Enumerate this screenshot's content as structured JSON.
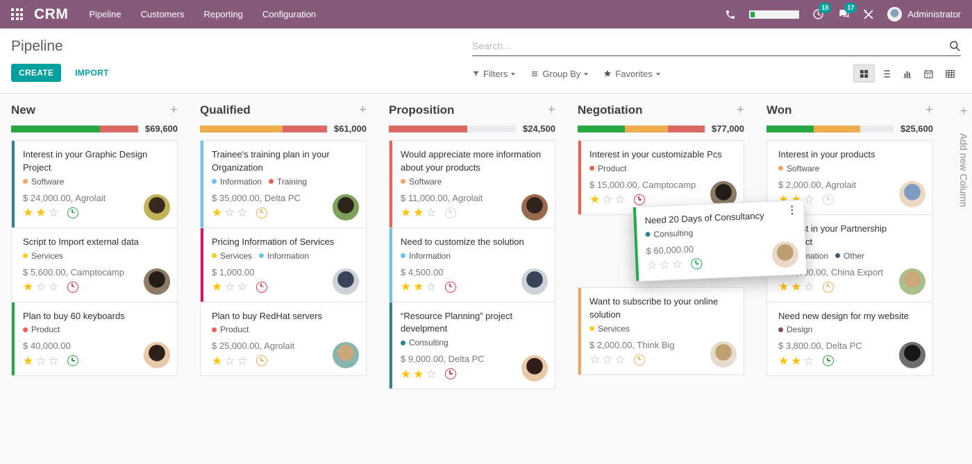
{
  "topbar": {
    "brand": "CRM",
    "menus": [
      "Pipeline",
      "Customers",
      "Reporting",
      "Configuration"
    ],
    "activity_count": "15",
    "message_count": "17",
    "user": "Administrator",
    "accent_color": "#875A7B",
    "badge_color": "#00A09D"
  },
  "control": {
    "title": "Pipeline",
    "create_label": "CREATE",
    "import_label": "IMPORT",
    "search_placeholder": "Search...",
    "filters_label": "Filters",
    "group_by_label": "Group By",
    "favorites_label": "Favorites",
    "views": {
      "active": "kanban",
      "items": [
        "kanban",
        "list",
        "graph",
        "calendar",
        "pivot"
      ]
    }
  },
  "board": {
    "add_column_label": "Add new Column",
    "columns": [
      {
        "name": "New",
        "amount": "$69,600",
        "progress": [
          {
            "color": "#28a745",
            "width": "70%"
          },
          {
            "color": "#dc6965",
            "width": "30%"
          }
        ],
        "cards": [
          {
            "title": "Interest in your Graphic Design Project",
            "tags": [
              {
                "label": "Software",
                "color": "#F4A460"
              }
            ],
            "amount": "$ 24,000.00, Agrolait",
            "stars": 2,
            "clock": "#28a745",
            "border": "#2C8397",
            "avatar": {
              "a": "#c2b35a",
              "b": "#39291f"
            }
          },
          {
            "title": "Script to Import external data",
            "tags": [
              {
                "label": "Services",
                "color": "#F7CD1F"
              }
            ],
            "amount": "$ 5,600.00, Camptocamp",
            "stars": 1,
            "clock": "#dc3545",
            "border": "transparent",
            "avatar": {
              "a": "#8a7a66",
              "b": "#241d18"
            }
          },
          {
            "title": "Plan to buy 60 keyboards",
            "tags": [
              {
                "label": "Product",
                "color": "#F06050"
              }
            ],
            "amount": "$ 40,000.00",
            "stars": 1,
            "clock": "#28a745",
            "border": "#28a745",
            "avatar": {
              "a": "#e8c9a8",
              "b": "#2e1f1a"
            }
          }
        ]
      },
      {
        "name": "Qualified",
        "amount": "$61,000",
        "progress": [
          {
            "color": "#f0ad4e",
            "width": "65%"
          },
          {
            "color": "#dc6965",
            "width": "35%"
          }
        ],
        "cards": [
          {
            "title": "Trainee's training plan in your Organization",
            "tags": [
              {
                "label": "Information",
                "color": "#6CC1ED"
              },
              {
                "label": "Training",
                "color": "#F06050"
              }
            ],
            "amount": "$ 35,000.00, Delta PC",
            "stars": 1,
            "clock": "#f0ad4e",
            "border": "#6CC1ED",
            "avatar": {
              "a": "#7da05a",
              "b": "#2e241b"
            }
          },
          {
            "title": "Pricing Information of Services",
            "tags": [
              {
                "label": "Services",
                "color": "#F7CD1F"
              },
              {
                "label": "Information",
                "color": "#6CC1ED"
              }
            ],
            "amount": "$ 1,000.00",
            "stars": 1,
            "clock": "#dc3545",
            "border": "#D6145F",
            "avatar": {
              "a": "#cdd2d8",
              "b": "#39435a"
            }
          },
          {
            "title": "Plan to buy RedHat servers",
            "tags": [
              {
                "label": "Product",
                "color": "#F06050"
              }
            ],
            "amount": "$ 25,000.00, Agrolait",
            "stars": 1,
            "clock": "#f0ad4e",
            "border": "transparent",
            "avatar": {
              "a": "#86b5b2",
              "b": "#caa87c"
            }
          }
        ]
      },
      {
        "name": "Proposition",
        "amount": "$24,500",
        "progress": [
          {
            "color": "#dc6965",
            "width": "62%"
          }
        ],
        "cards": [
          {
            "title": "Would appreciate more information about your products",
            "tags": [
              {
                "label": "Software",
                "color": "#F4A460"
              }
            ],
            "amount": "$ 11,000.00, Agrolait",
            "stars": 2,
            "clock": "#d5d5d5",
            "border": "#F06050",
            "avatar": {
              "a": "#9a6a4f",
              "b": "#31231c"
            }
          },
          {
            "title": "Need to customize the solution",
            "tags": [
              {
                "label": "Information",
                "color": "#6CC1ED"
              }
            ],
            "amount": "$ 4,500.00",
            "stars": 2,
            "clock": "#dc3545",
            "border": "#6CC1ED",
            "avatar": {
              "a": "#cdd2d8",
              "b": "#39435a"
            }
          },
          {
            "title": "“Resource Planning” project develpment",
            "tags": [
              {
                "label": "Consulting",
                "color": "#2C8397"
              }
            ],
            "amount": "$ 9,000.00, Delta PC",
            "stars": 2,
            "clock": "#dc3545",
            "border": "#2C8397",
            "avatar": {
              "a": "#e8c9a8",
              "b": "#2e1f1a"
            }
          }
        ]
      },
      {
        "name": "Negotiation",
        "amount": "$77,000",
        "progress": [
          {
            "color": "#28a745",
            "width": "37%"
          },
          {
            "color": "#f0ad4e",
            "width": "34%"
          },
          {
            "color": "#dc6965",
            "width": "29%"
          }
        ],
        "cards": [
          {
            "title": "Interest in your customizable Pcs",
            "tags": [
              {
                "label": "Product",
                "color": "#F06050"
              }
            ],
            "amount": "$ 15,000.00, Camptocamp",
            "stars": 1,
            "clock": "#dc3545",
            "border": "#F06050",
            "avatar": {
              "a": "#8a7a66",
              "b": "#241d18"
            }
          },
          {
            "title": "Want to subscribe to your online solution",
            "tags": [
              {
                "label": "Services",
                "color": "#F7CD1F"
              }
            ],
            "amount": "$ 2,000.00, Think Big",
            "stars": 0,
            "clock": "#f0ad4e",
            "border": "#F4A460",
            "avatar": {
              "a": "#e6dccb",
              "b": "#bfa071"
            }
          }
        ]
      },
      {
        "name": "Won",
        "amount": "$25,600",
        "progress": [
          {
            "color": "#28a745",
            "width": "37%"
          },
          {
            "color": "#f0ad4e",
            "width": "37%"
          }
        ],
        "cards": [
          {
            "title": "Interest in your products",
            "tags": [
              {
                "label": "Software",
                "color": "#F4A460"
              }
            ],
            "amount": "$ 2,000.00, Agrolait",
            "stars": 2,
            "clock": "#d5d5d5",
            "border": "transparent",
            "avatar": {
              "a": "#ead9c0",
              "b": "#7d9cc0"
            }
          },
          {
            "title": "Interest in your Partnership Contract",
            "tags": [
              {
                "label": "Information",
                "color": "#6CC1ED"
              },
              {
                "label": "Other",
                "color": "#475577"
              }
            ],
            "amount": "$ 19,800.00, China Export",
            "stars": 2,
            "clock": "#f0ad4e",
            "border": "transparent",
            "avatar": {
              "a": "#a9c08a",
              "b": "#caa87c"
            }
          },
          {
            "title": "Need new design for my website",
            "tags": [
              {
                "label": "Design",
                "color": "#814968"
              }
            ],
            "amount": "$ 3,800.00, Delta PC",
            "stars": 2,
            "clock": "#28a745",
            "border": "transparent",
            "avatar": {
              "a": "#6f6f6f",
              "b": "#171717"
            }
          }
        ]
      }
    ],
    "dragged": {
      "title": "Need 20 Days of Consultancy",
      "tags": [
        {
          "label": "Consulting",
          "color": "#2C8397"
        }
      ],
      "amount": "$ 60,000.00",
      "stars": 0,
      "clock": "#28a745",
      "border": "#28a745",
      "avatar": {
        "a": "#ead9c8",
        "b": "#bd9e72"
      },
      "kebab": "⋮"
    }
  }
}
